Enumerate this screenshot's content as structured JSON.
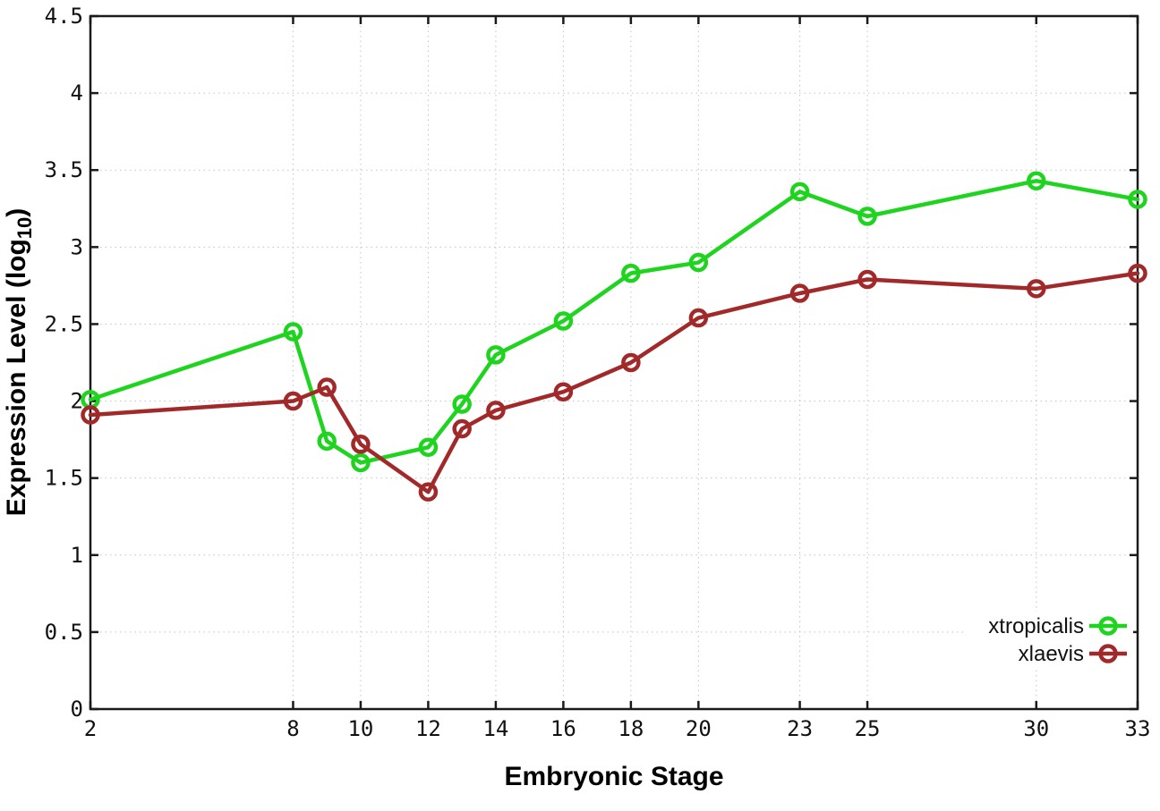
{
  "chart_data": {
    "type": "line",
    "title": "",
    "xlabel": "Embryonic Stage",
    "ylabel": "Expression Level (log10)",
    "ylabel_parts": {
      "main": "Expression Level (log",
      "sub": "10",
      "end": ")"
    },
    "x": [
      2,
      8,
      9,
      10,
      12,
      13,
      14,
      16,
      18,
      20,
      23,
      25,
      30,
      33
    ],
    "series": [
      {
        "name": "xtropicalis",
        "color": "#1ed41e",
        "marker": "open-circle",
        "values": [
          2.01,
          2.45,
          1.74,
          1.6,
          1.7,
          1.98,
          2.3,
          2.52,
          2.83,
          2.9,
          3.36,
          3.2,
          3.43,
          3.31
        ]
      },
      {
        "name": "xlaevis",
        "color": "#a22929",
        "marker": "open-circle",
        "values": [
          1.91,
          2.0,
          2.09,
          1.72,
          1.41,
          1.82,
          1.94,
          2.06,
          2.25,
          2.54,
          2.7,
          2.79,
          2.73,
          2.83
        ]
      }
    ],
    "xlim": [
      2,
      33
    ],
    "ylim": [
      0,
      4.5
    ],
    "xticks": [
      2,
      8,
      10,
      12,
      14,
      16,
      18,
      20,
      23,
      25,
      30,
      33
    ],
    "yticks": [
      0,
      0.5,
      1,
      1.5,
      2,
      2.5,
      3,
      3.5,
      4,
      4.5
    ],
    "grid": true,
    "grid_style": "dotted",
    "legend_position": "bottom-right",
    "colors": {
      "background": "#ffffff",
      "border": "#1a1a1a",
      "grid": "#c4c4c4",
      "text": "#111111"
    }
  }
}
